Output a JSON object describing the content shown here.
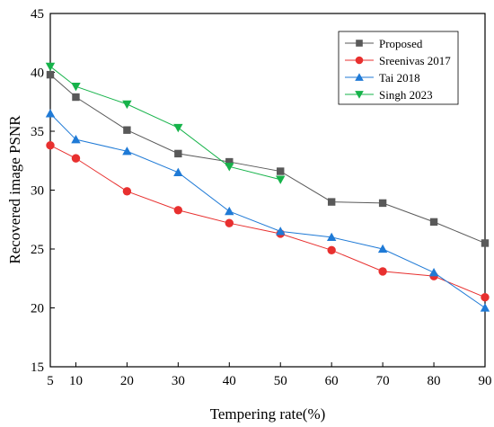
{
  "chart_data": {
    "type": "line",
    "title": "",
    "xlabel": "Tempering rate(%)",
    "ylabel": "Recovered image PSNR",
    "xlim": [
      5,
      90
    ],
    "ylim": [
      15,
      45
    ],
    "xticks": [
      5,
      10,
      20,
      30,
      40,
      50,
      60,
      70,
      80,
      90
    ],
    "yticks": [
      15,
      20,
      25,
      30,
      35,
      40,
      45
    ],
    "grid": false,
    "legend_position": "top-right",
    "series": [
      {
        "name": "Proposed",
        "color": "#595959",
        "marker": "square",
        "x": [
          5,
          10,
          20,
          30,
          40,
          50,
          60,
          70,
          80,
          90
        ],
        "y": [
          39.8,
          37.9,
          35.1,
          33.1,
          32.4,
          31.6,
          29.0,
          28.9,
          27.3,
          25.5
        ]
      },
      {
        "name": "Sreenivas 2017",
        "color": "#e8302f",
        "marker": "circle",
        "x": [
          5,
          10,
          20,
          30,
          40,
          50,
          60,
          70,
          80,
          90
        ],
        "y": [
          33.8,
          32.7,
          29.9,
          28.3,
          27.2,
          26.3,
          24.9,
          23.1,
          22.7,
          20.9
        ]
      },
      {
        "name": "Tai 2018",
        "color": "#1f7ad6",
        "marker": "triangle-up",
        "x": [
          5,
          10,
          20,
          30,
          40,
          50,
          60,
          70,
          80,
          90
        ],
        "y": [
          36.5,
          34.3,
          33.3,
          31.5,
          28.2,
          26.5,
          26.0,
          25.0,
          23.0,
          20.0
        ]
      },
      {
        "name": "Singh 2023",
        "color": "#16b34a",
        "marker": "triangle-down",
        "x": [
          5,
          10,
          20,
          30,
          40,
          50
        ],
        "y": [
          40.5,
          38.8,
          37.3,
          35.3,
          32.0,
          30.9
        ]
      }
    ]
  }
}
